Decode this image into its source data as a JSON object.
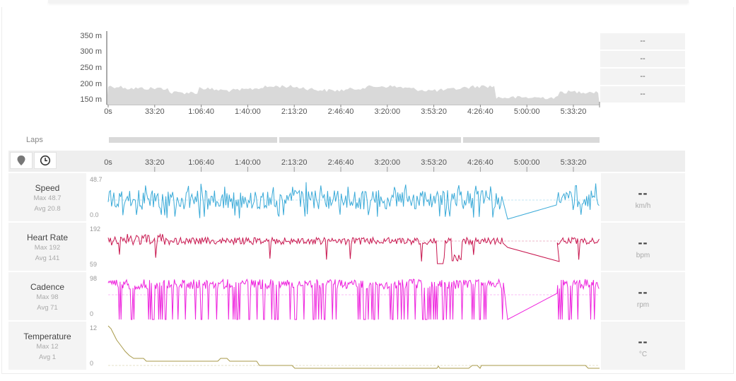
{
  "elevation": {
    "y_labels": [
      "350 m",
      "300 m",
      "250 m",
      "200 m",
      "150 m"
    ],
    "x_labels": [
      "0s",
      "33:20",
      "1:06:40",
      "1:40:00",
      "2:13:20",
      "2:46:40",
      "3:20:00",
      "3:53:20",
      "4:26:40",
      "5:00:00",
      "5:33:20"
    ],
    "stats": [
      "--",
      "--",
      "--",
      "--"
    ]
  },
  "laps": {
    "label": "Laps"
  },
  "timeline": {
    "x_labels": [
      "0s",
      "33:20",
      "1:06:40",
      "1:40:00",
      "2:13:20",
      "2:46:40",
      "3:20:00",
      "3:53:20",
      "4:26:40",
      "5:00:00",
      "5:33:20"
    ],
    "location_icon": "map-pin-icon",
    "time_icon": "clock-icon"
  },
  "rows": [
    {
      "name": "Speed",
      "max": "Max 48.7",
      "avg": "Avg 20.8",
      "y_top": "48.7",
      "y_bottom": "0.0",
      "value": "--",
      "unit": "km/h",
      "color": "#3aaad8"
    },
    {
      "name": "Heart Rate",
      "max": "Max 192",
      "avg": "Avg 141",
      "y_top": "192",
      "y_bottom": "59",
      "value": "--",
      "unit": "bpm",
      "color": "#c8174f"
    },
    {
      "name": "Cadence",
      "max": "Max 98",
      "avg": "Avg 71",
      "y_top": "98",
      "y_bottom": "0",
      "value": "--",
      "unit": "rpm",
      "color": "#ee22dd"
    },
    {
      "name": "Temperature",
      "max": "Max 12",
      "avg": "Avg 1",
      "y_top": "12",
      "y_bottom": "0",
      "value": "--",
      "unit": "°C",
      "color": "#a89a4a"
    }
  ]
}
